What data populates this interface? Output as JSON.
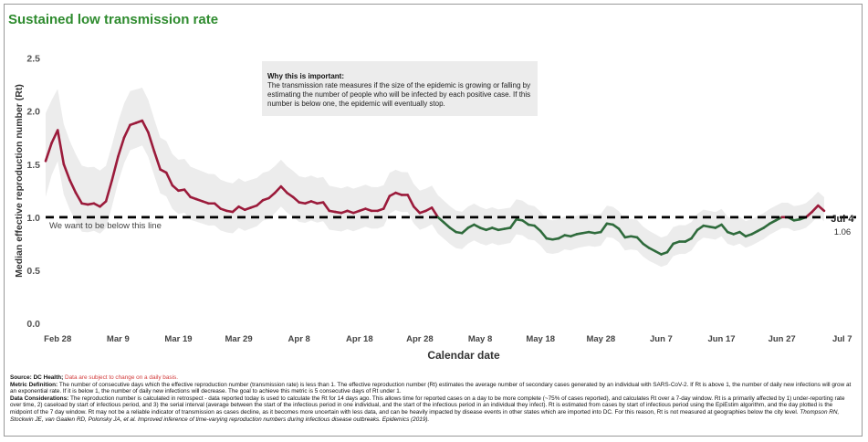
{
  "title": "Sustained low transmission rate",
  "annotation": {
    "heading": "Why this is important:",
    "text": "The transmission rate measures if the size of the epidemic is growing or falling by estimating the number of people who will be infected by each positive case. If this number is below one, the epidemic will eventually stop."
  },
  "chart_data": {
    "type": "line",
    "title": "Sustained low transmission rate",
    "xlabel": "Calendar date",
    "ylabel": "Median effective reproduction number (Rt)",
    "ylim": [
      0,
      2.6
    ],
    "yticks": [
      "0.0",
      "0.5",
      "1.0",
      "1.5",
      "2.0",
      "2.5"
    ],
    "ytick_values": [
      0,
      0.5,
      1.0,
      1.5,
      2.0,
      2.5
    ],
    "x_start": "2020-02-26",
    "x_end": "2020-07-09",
    "xticks": [
      {
        "label": "Feb 28",
        "date": "2020-02-28"
      },
      {
        "label": "Mar 9",
        "date": "2020-03-09"
      },
      {
        "label": "Mar 19",
        "date": "2020-03-19"
      },
      {
        "label": "Mar 29",
        "date": "2020-03-29"
      },
      {
        "label": "Apr 8",
        "date": "2020-04-08"
      },
      {
        "label": "Apr 18",
        "date": "2020-04-18"
      },
      {
        "label": "Apr 28",
        "date": "2020-04-28"
      },
      {
        "label": "May 8",
        "date": "2020-05-08"
      },
      {
        "label": "May 18",
        "date": "2020-05-18"
      },
      {
        "label": "May 28",
        "date": "2020-05-28"
      },
      {
        "label": "Jun 7",
        "date": "2020-06-07"
      },
      {
        "label": "Jun 17",
        "date": "2020-06-17"
      },
      {
        "label": "Jun 27",
        "date": "2020-06-27"
      },
      {
        "label": "Jul 7",
        "date": "2020-07-07"
      }
    ],
    "reference_line": {
      "y": 1.0,
      "label": "We want to be below this line"
    },
    "last_point": {
      "date_label": "Jul 4",
      "value_label": "1.06"
    },
    "colors": {
      "above": "#9b1b3b",
      "below": "#2f6b3c",
      "band": "#ececec",
      "reference": "#000000",
      "title": "#2e8b2e"
    },
    "series": [
      {
        "values": [
          {
            "x": "2020-02-26",
            "y": 1.53
          },
          {
            "x": "2020-02-27",
            "y": 1.7
          },
          {
            "x": "2020-02-28",
            "y": 1.82
          },
          {
            "x": "2020-02-29",
            "y": 1.5
          },
          {
            "x": "2020-03-01",
            "y": 1.35
          },
          {
            "x": "2020-03-02",
            "y": 1.23
          },
          {
            "x": "2020-03-03",
            "y": 1.13
          },
          {
            "x": "2020-03-04",
            "y": 1.12
          },
          {
            "x": "2020-03-05",
            "y": 1.13
          },
          {
            "x": "2020-03-06",
            "y": 1.1
          },
          {
            "x": "2020-03-07",
            "y": 1.15
          },
          {
            "x": "2020-03-08",
            "y": 1.35
          },
          {
            "x": "2020-03-09",
            "y": 1.57
          },
          {
            "x": "2020-03-10",
            "y": 1.75
          },
          {
            "x": "2020-03-11",
            "y": 1.87
          },
          {
            "x": "2020-03-12",
            "y": 1.89
          },
          {
            "x": "2020-03-13",
            "y": 1.91
          },
          {
            "x": "2020-03-14",
            "y": 1.8
          },
          {
            "x": "2020-03-15",
            "y": 1.62
          },
          {
            "x": "2020-03-16",
            "y": 1.45
          },
          {
            "x": "2020-03-17",
            "y": 1.42
          },
          {
            "x": "2020-03-18",
            "y": 1.3
          },
          {
            "x": "2020-03-19",
            "y": 1.25
          },
          {
            "x": "2020-03-20",
            "y": 1.26
          },
          {
            "x": "2020-03-21",
            "y": 1.19
          },
          {
            "x": "2020-03-22",
            "y": 1.17
          },
          {
            "x": "2020-03-23",
            "y": 1.15
          },
          {
            "x": "2020-03-24",
            "y": 1.13
          },
          {
            "x": "2020-03-25",
            "y": 1.13
          },
          {
            "x": "2020-03-26",
            "y": 1.08
          },
          {
            "x": "2020-03-27",
            "y": 1.06
          },
          {
            "x": "2020-03-28",
            "y": 1.05
          },
          {
            "x": "2020-03-29",
            "y": 1.1
          },
          {
            "x": "2020-03-30",
            "y": 1.07
          },
          {
            "x": "2020-03-31",
            "y": 1.09
          },
          {
            "x": "2020-04-01",
            "y": 1.11
          },
          {
            "x": "2020-04-02",
            "y": 1.16
          },
          {
            "x": "2020-04-03",
            "y": 1.18
          },
          {
            "x": "2020-04-04",
            "y": 1.23
          },
          {
            "x": "2020-04-05",
            "y": 1.29
          },
          {
            "x": "2020-04-06",
            "y": 1.23
          },
          {
            "x": "2020-04-07",
            "y": 1.19
          },
          {
            "x": "2020-04-08",
            "y": 1.14
          },
          {
            "x": "2020-04-09",
            "y": 1.13
          },
          {
            "x": "2020-04-10",
            "y": 1.15
          },
          {
            "x": "2020-04-11",
            "y": 1.13
          },
          {
            "x": "2020-04-12",
            "y": 1.14
          },
          {
            "x": "2020-04-13",
            "y": 1.06
          },
          {
            "x": "2020-04-14",
            "y": 1.05
          },
          {
            "x": "2020-04-15",
            "y": 1.04
          },
          {
            "x": "2020-04-16",
            "y": 1.06
          },
          {
            "x": "2020-04-17",
            "y": 1.04
          },
          {
            "x": "2020-04-18",
            "y": 1.06
          },
          {
            "x": "2020-04-19",
            "y": 1.08
          },
          {
            "x": "2020-04-20",
            "y": 1.06
          },
          {
            "x": "2020-04-21",
            "y": 1.06
          },
          {
            "x": "2020-04-22",
            "y": 1.08
          },
          {
            "x": "2020-04-23",
            "y": 1.2
          },
          {
            "x": "2020-04-24",
            "y": 1.23
          },
          {
            "x": "2020-04-25",
            "y": 1.21
          },
          {
            "x": "2020-04-26",
            "y": 1.21
          },
          {
            "x": "2020-04-27",
            "y": 1.1
          },
          {
            "x": "2020-04-28",
            "y": 1.04
          },
          {
            "x": "2020-04-29",
            "y": 1.06
          },
          {
            "x": "2020-04-30",
            "y": 1.09
          },
          {
            "x": "2020-05-01",
            "y": 1.0
          },
          {
            "x": "2020-05-02",
            "y": 0.95
          },
          {
            "x": "2020-05-03",
            "y": 0.9
          },
          {
            "x": "2020-05-04",
            "y": 0.86
          },
          {
            "x": "2020-05-05",
            "y": 0.85
          },
          {
            "x": "2020-05-06",
            "y": 0.9
          },
          {
            "x": "2020-05-07",
            "y": 0.93
          },
          {
            "x": "2020-05-08",
            "y": 0.9
          },
          {
            "x": "2020-05-09",
            "y": 0.88
          },
          {
            "x": "2020-05-10",
            "y": 0.9
          },
          {
            "x": "2020-05-11",
            "y": 0.88
          },
          {
            "x": "2020-05-12",
            "y": 0.89
          },
          {
            "x": "2020-05-13",
            "y": 0.9
          },
          {
            "x": "2020-05-14",
            "y": 0.98
          },
          {
            "x": "2020-05-15",
            "y": 0.97
          },
          {
            "x": "2020-05-16",
            "y": 0.93
          },
          {
            "x": "2020-05-17",
            "y": 0.92
          },
          {
            "x": "2020-05-18",
            "y": 0.87
          },
          {
            "x": "2020-05-19",
            "y": 0.8
          },
          {
            "x": "2020-05-20",
            "y": 0.79
          },
          {
            "x": "2020-05-21",
            "y": 0.8
          },
          {
            "x": "2020-05-22",
            "y": 0.83
          },
          {
            "x": "2020-05-23",
            "y": 0.82
          },
          {
            "x": "2020-05-24",
            "y": 0.84
          },
          {
            "x": "2020-05-25",
            "y": 0.85
          },
          {
            "x": "2020-05-26",
            "y": 0.86
          },
          {
            "x": "2020-05-27",
            "y": 0.85
          },
          {
            "x": "2020-05-28",
            "y": 0.86
          },
          {
            "x": "2020-05-29",
            "y": 0.94
          },
          {
            "x": "2020-05-30",
            "y": 0.93
          },
          {
            "x": "2020-05-31",
            "y": 0.89
          },
          {
            "x": "2020-06-01",
            "y": 0.81
          },
          {
            "x": "2020-06-02",
            "y": 0.82
          },
          {
            "x": "2020-06-03",
            "y": 0.81
          },
          {
            "x": "2020-06-04",
            "y": 0.75
          },
          {
            "x": "2020-06-05",
            "y": 0.71
          },
          {
            "x": "2020-06-06",
            "y": 0.68
          },
          {
            "x": "2020-06-07",
            "y": 0.65
          },
          {
            "x": "2020-06-08",
            "y": 0.67
          },
          {
            "x": "2020-06-09",
            "y": 0.75
          },
          {
            "x": "2020-06-10",
            "y": 0.77
          },
          {
            "x": "2020-06-11",
            "y": 0.77
          },
          {
            "x": "2020-06-12",
            "y": 0.8
          },
          {
            "x": "2020-06-13",
            "y": 0.88
          },
          {
            "x": "2020-06-14",
            "y": 0.92
          },
          {
            "x": "2020-06-15",
            "y": 0.91
          },
          {
            "x": "2020-06-16",
            "y": 0.9
          },
          {
            "x": "2020-06-17",
            "y": 0.93
          },
          {
            "x": "2020-06-18",
            "y": 0.86
          },
          {
            "x": "2020-06-19",
            "y": 0.84
          },
          {
            "x": "2020-06-20",
            "y": 0.86
          },
          {
            "x": "2020-06-21",
            "y": 0.82
          },
          {
            "x": "2020-06-22",
            "y": 0.84
          },
          {
            "x": "2020-06-23",
            "y": 0.87
          },
          {
            "x": "2020-06-24",
            "y": 0.9
          },
          {
            "x": "2020-06-25",
            "y": 0.94
          },
          {
            "x": "2020-06-26",
            "y": 0.97
          },
          {
            "x": "2020-06-27",
            "y": 1.0
          },
          {
            "x": "2020-06-28",
            "y": 1.0
          },
          {
            "x": "2020-06-29",
            "y": 0.97
          },
          {
            "x": "2020-06-30",
            "y": 0.98
          },
          {
            "x": "2020-07-01",
            "y": 1.0
          },
          {
            "x": "2020-07-02",
            "y": 1.05
          },
          {
            "x": "2020-07-03",
            "y": 1.11
          },
          {
            "x": "2020-07-04",
            "y": 1.06
          }
        ]
      }
    ]
  },
  "footer": {
    "source_label": "Source: DC Health;",
    "source_note": "Data are subject to change on a daily basis.",
    "metric_label": "Metric Definition:",
    "metric_text": "The number of consecutive days which the effective reproduction number (transmission rate) is less than 1. The effective reproduction number (Rt) estimates the average number of secondary cases generated by an individual with SARS-CoV-2. If Rt is above 1, the number of daily new infections will grow at an exponential rate. If it is below 1, the number of daily new infections will decrease. The goal to achieve this metric is 5 consecutive days of Rt under 1.",
    "considerations_label": "Data Considerations:",
    "considerations_text": "The reproduction number is calculated in retrospect - data reported today is used to calculate the Rt for 14 days ago. This allows time for reported cases on a day to be more complete (~75% of cases reported), and calculates Rt over a 7-day window. Rt is a primarily affected by 1) under-reporting rate over time, 2) caseload by start of infectious period, and 3) the serial interval (average between the start of the infectious period in one individual, and the start of the infectious period in an individual they infect). Rt is estimated from cases by start of infectious period using the EpiEstim algorithm, and the day plotted is the midpoint of the 7 day window. Rt may not be a reliable indicator of transmission as cases decline, as it becomes more uncertain with less data, and can be heavily impacted by disease events in other states which are imported into DC. For this reason, Rt is not measured at geographies below the city level.",
    "citation": "Thompson RN, Stockwin JE, van Gaalen RD, Polonsky JA, et al. Improved inference of time-varying reproduction numbers during infectious disease outbreaks. Epidemics (2019)."
  }
}
